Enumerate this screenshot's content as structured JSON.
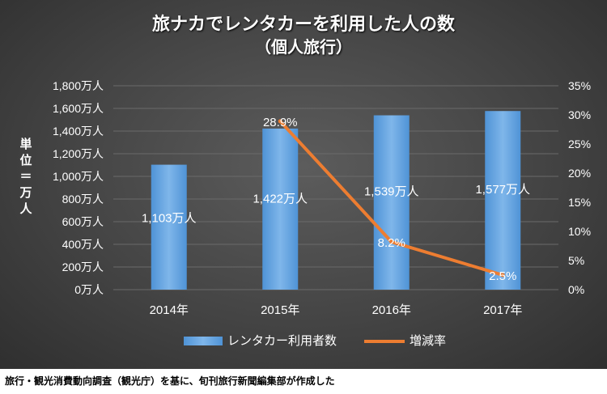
{
  "title_line1": "旅ナカでレンタカーを利用した人の数",
  "title_line2": "（個人旅行）",
  "ylabel": "単位＝万人",
  "caption": "旅行・観光消費動向調査（観光庁）を基に、旬刊旅行新聞編集部が作成した",
  "colors": {
    "bar": "#4f93d6",
    "bar_light": "#7fb6ea",
    "line": "#ed7d31",
    "text": "#ffffff",
    "grid": "#6a6a6a"
  },
  "chart_data": {
    "type": "bar",
    "categories": [
      "2014年",
      "2015年",
      "2016年",
      "2017年"
    ],
    "series": [
      {
        "name": "レンタカー利用者数",
        "type": "bar",
        "axis": "left",
        "values": [
          1103,
          1422,
          1539,
          1577
        ],
        "labels": [
          "1,103万人",
          "1,422万人",
          "1,539万人",
          "1,577万人"
        ]
      },
      {
        "name": "増減率",
        "type": "line",
        "axis": "right",
        "values": [
          null,
          28.9,
          8.2,
          2.5
        ],
        "labels": [
          null,
          "28.9%",
          "8.2%",
          "2.5%"
        ]
      }
    ],
    "ylim_left": [
      0,
      1800
    ],
    "yticks_left": [
      "0万人",
      "200万人",
      "400万人",
      "600万人",
      "800万人",
      "1,000万人",
      "1,200万人",
      "1,400万人",
      "1,600万人",
      "1,800万人"
    ],
    "ylim_right": [
      0,
      35
    ],
    "yticks_right": [
      "0%",
      "5%",
      "10%",
      "15%",
      "20%",
      "25%",
      "30%",
      "35%"
    ],
    "grid": true,
    "legend_position": "bottom"
  }
}
